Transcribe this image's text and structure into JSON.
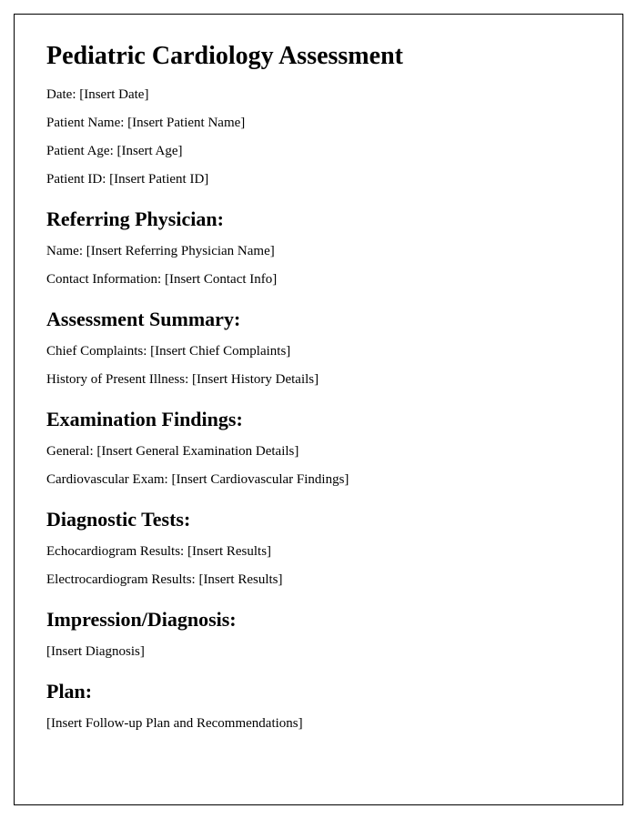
{
  "title": "Pediatric Cardiology Assessment",
  "patient_info": {
    "date": "Date: [Insert Date]",
    "name": "Patient Name: [Insert Patient Name]",
    "age": "Patient Age: [Insert Age]",
    "id": "Patient ID: [Insert Patient ID]"
  },
  "sections": {
    "referring_physician": {
      "heading": "Referring Physician:",
      "name": "Name: [Insert Referring Physician Name]",
      "contact": "Contact Information: [Insert Contact Info]"
    },
    "assessment_summary": {
      "heading": "Assessment Summary:",
      "chief_complaints": "Chief Complaints: [Insert Chief Complaints]",
      "history": "History of Present Illness: [Insert History Details]"
    },
    "examination_findings": {
      "heading": "Examination Findings:",
      "general": "General: [Insert General Examination Details]",
      "cardiovascular": "Cardiovascular Exam: [Insert Cardiovascular Findings]"
    },
    "diagnostic_tests": {
      "heading": "Diagnostic Tests:",
      "echo": "Echocardiogram Results: [Insert Results]",
      "ecg": "Electrocardiogram Results: [Insert Results]"
    },
    "impression": {
      "heading": "Impression/Diagnosis:",
      "diagnosis": "[Insert Diagnosis]"
    },
    "plan": {
      "heading": "Plan:",
      "followup": "[Insert Follow-up Plan and Recommendations]"
    }
  }
}
